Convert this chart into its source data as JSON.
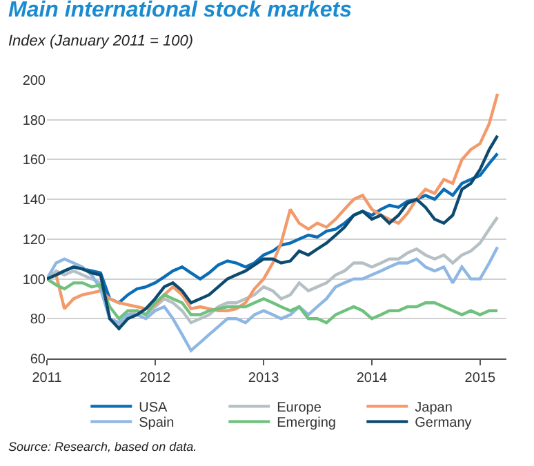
{
  "chart_data": {
    "type": "line",
    "title": "Main international stock markets",
    "subtitle": "Index (January 2011 = 100)",
    "x": [
      "2011-01",
      "2011-02",
      "2011-03",
      "2011-04",
      "2011-05",
      "2011-06",
      "2011-07",
      "2011-08",
      "2011-09",
      "2011-10",
      "2011-11",
      "2011-12",
      "2012-01",
      "2012-02",
      "2012-03",
      "2012-04",
      "2012-05",
      "2012-06",
      "2012-07",
      "2012-08",
      "2012-09",
      "2012-10",
      "2012-11",
      "2012-12",
      "2013-01",
      "2013-02",
      "2013-03",
      "2013-04",
      "2013-05",
      "2013-06",
      "2013-07",
      "2013-08",
      "2013-09",
      "2013-10",
      "2013-11",
      "2013-12",
      "2014-01",
      "2014-02",
      "2014-03",
      "2014-04",
      "2014-05",
      "2014-06",
      "2014-07",
      "2014-08",
      "2014-09",
      "2014-10",
      "2014-11",
      "2014-12",
      "2015-01",
      "2015-02",
      "2015-03"
    ],
    "series": [
      {
        "name": "USA",
        "color": "#0a6db5",
        "values": [
          100,
          102,
          104,
          106,
          105,
          104,
          103,
          90,
          88,
          92,
          95,
          96,
          98,
          101,
          104,
          106,
          103,
          100,
          103,
          107,
          109,
          108,
          106,
          108,
          112,
          114,
          117,
          118,
          120,
          122,
          121,
          124,
          125,
          128,
          132,
          134,
          132,
          135,
          137,
          136,
          139,
          140,
          142,
          140,
          145,
          142,
          148,
          150,
          152,
          158,
          163
        ]
      },
      {
        "name": "Europe",
        "color": "#b5c0c4",
        "values": [
          100,
          104,
          102,
          104,
          102,
          100,
          98,
          80,
          76,
          82,
          84,
          82,
          86,
          90,
          88,
          84,
          78,
          80,
          82,
          86,
          88,
          88,
          90,
          92,
          96,
          94,
          90,
          92,
          98,
          94,
          96,
          98,
          102,
          104,
          108,
          108,
          106,
          108,
          110,
          110,
          113,
          115,
          112,
          110,
          112,
          108,
          112,
          114,
          118,
          125,
          131
        ]
      },
      {
        "name": "Japan",
        "color": "#f39a6b",
        "values": [
          100,
          102,
          85,
          90,
          92,
          93,
          94,
          90,
          88,
          87,
          86,
          85,
          87,
          92,
          96,
          92,
          85,
          86,
          85,
          84,
          84,
          85,
          88,
          95,
          100,
          108,
          118,
          135,
          128,
          125,
          128,
          126,
          130,
          135,
          140,
          142,
          135,
          132,
          130,
          128,
          133,
          140,
          145,
          143,
          150,
          148,
          160,
          165,
          168,
          178,
          193
        ]
      },
      {
        "name": "Spain",
        "color": "#8fb7e3",
        "values": [
          100,
          108,
          110,
          108,
          106,
          102,
          95,
          80,
          78,
          82,
          82,
          80,
          84,
          86,
          80,
          72,
          64,
          68,
          72,
          76,
          80,
          80,
          78,
          82,
          84,
          82,
          80,
          82,
          86,
          82,
          86,
          90,
          96,
          98,
          100,
          100,
          102,
          104,
          106,
          108,
          108,
          110,
          106,
          104,
          106,
          98,
          106,
          100,
          100,
          108,
          116
        ]
      },
      {
        "name": "Emerging",
        "color": "#6fc17e",
        "values": [
          100,
          97,
          95,
          98,
          98,
          96,
          97,
          86,
          80,
          84,
          84,
          82,
          88,
          92,
          90,
          88,
          82,
          82,
          84,
          85,
          86,
          86,
          86,
          88,
          90,
          88,
          86,
          84,
          86,
          80,
          80,
          78,
          82,
          84,
          86,
          84,
          80,
          82,
          84,
          84,
          86,
          86,
          88,
          88,
          86,
          84,
          82,
          84,
          82,
          84,
          84
        ]
      },
      {
        "name": "Germany",
        "color": "#0d4a70",
        "values": [
          100,
          102,
          104,
          106,
          105,
          103,
          102,
          80,
          75,
          80,
          82,
          85,
          90,
          96,
          98,
          94,
          88,
          90,
          92,
          96,
          100,
          102,
          104,
          107,
          110,
          110,
          108,
          109,
          114,
          112,
          115,
          118,
          122,
          126,
          132,
          134,
          130,
          132,
          128,
          132,
          138,
          140,
          136,
          130,
          128,
          132,
          145,
          148,
          155,
          165,
          172
        ]
      }
    ],
    "xlim": [
      "2011-01-01",
      "2015-03-31"
    ],
    "xticks": [
      {
        "value": "2011-01-01",
        "label": "2011"
      },
      {
        "value": "2012-01-01",
        "label": "2012"
      },
      {
        "value": "2013-01-01",
        "label": "2013"
      },
      {
        "value": "2014-01-01",
        "label": "2014"
      },
      {
        "value": "2015-01-01",
        "label": "2015"
      }
    ],
    "ylim": [
      60,
      200
    ],
    "yticks": [
      60,
      80,
      100,
      120,
      140,
      160,
      180,
      200
    ],
    "grid": "y",
    "legend": "bottom",
    "marker": "none",
    "line_style": "solid",
    "annotations": [
      "Source: Research, based on data."
    ]
  }
}
